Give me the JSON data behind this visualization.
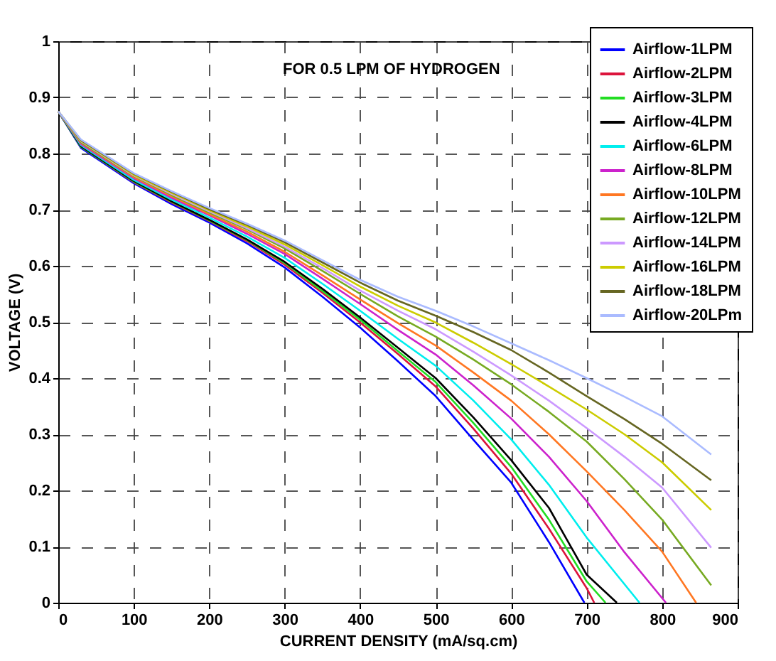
{
  "chart_data": {
    "type": "line",
    "xlabel": "CURRENT DENSITY (mA/sq.cm)",
    "ylabel": "VOLTAGE (V)",
    "annotations": [
      "FOR 0.5 LPM OF HYDROGEN"
    ],
    "xlim": [
      0,
      900
    ],
    "xticks": [
      0,
      100,
      200,
      300,
      400,
      500,
      600,
      700,
      800,
      900
    ],
    "ylim": [
      0,
      1
    ],
    "yticks": [
      0,
      0.1,
      0.2,
      0.3,
      0.4,
      0.5,
      0.6,
      0.7,
      0.8,
      0.9,
      1
    ],
    "grid": true,
    "legend": "top right",
    "marker": "none",
    "line_style": "solid",
    "series": [
      {
        "name": "Airflow-1LPM",
        "color": "#0000ff",
        "x": [
          0,
          30,
          100,
          150,
          200,
          250,
          300,
          350,
          400,
          450,
          500,
          550,
          600,
          650,
          697
        ],
        "values": [
          0.875,
          0.81,
          0.747,
          0.71,
          0.677,
          0.64,
          0.597,
          0.545,
          0.49,
          0.43,
          0.368,
          0.29,
          0.214,
          0.108,
          0
        ]
      },
      {
        "name": "Airflow-2LPM",
        "color": "#dc143c",
        "x": [
          0,
          30,
          100,
          150,
          200,
          250,
          300,
          350,
          400,
          450,
          500,
          550,
          600,
          650,
          700,
          710
        ],
        "values": [
          0.875,
          0.812,
          0.749,
          0.713,
          0.68,
          0.644,
          0.602,
          0.552,
          0.499,
          0.443,
          0.385,
          0.31,
          0.23,
          0.132,
          0.026,
          0
        ]
      },
      {
        "name": "Airflow-3LPM",
        "color": "#22dd22",
        "x": [
          0,
          30,
          100,
          150,
          200,
          250,
          300,
          350,
          400,
          450,
          500,
          550,
          600,
          650,
          700,
          725
        ],
        "values": [
          0.875,
          0.812,
          0.75,
          0.714,
          0.681,
          0.646,
          0.605,
          0.555,
          0.504,
          0.448,
          0.393,
          0.32,
          0.242,
          0.148,
          0.038,
          0
        ]
      },
      {
        "name": "Airflow-4LPM",
        "color": "#000000",
        "x": [
          0,
          30,
          100,
          150,
          200,
          250,
          300,
          350,
          400,
          450,
          500,
          550,
          600,
          650,
          700,
          740
        ],
        "values": [
          0.875,
          0.813,
          0.751,
          0.715,
          0.682,
          0.647,
          0.607,
          0.559,
          0.508,
          0.454,
          0.4,
          0.33,
          0.254,
          0.169,
          0.05,
          0
        ]
      },
      {
        "name": "Airflow-6LPM",
        "color": "#00eeee",
        "x": [
          0,
          30,
          100,
          150,
          200,
          250,
          300,
          350,
          400,
          450,
          500,
          550,
          600,
          650,
          700,
          770
        ],
        "values": [
          0.875,
          0.815,
          0.753,
          0.718,
          0.686,
          0.652,
          0.614,
          0.568,
          0.52,
          0.47,
          0.422,
          0.36,
          0.291,
          0.21,
          0.116,
          0
        ]
      },
      {
        "name": "Airflow-8LPM",
        "color": "#cc22cc",
        "x": [
          0,
          30,
          100,
          150,
          200,
          250,
          300,
          350,
          400,
          450,
          500,
          550,
          600,
          650,
          700,
          750,
          805
        ],
        "values": [
          0.875,
          0.817,
          0.756,
          0.721,
          0.69,
          0.657,
          0.621,
          0.577,
          0.532,
          0.486,
          0.442,
          0.387,
          0.328,
          0.26,
          0.181,
          0.09,
          0
        ]
      },
      {
        "name": "Airflow-10LPM",
        "color": "#ff7722",
        "x": [
          0,
          30,
          100,
          150,
          200,
          250,
          300,
          350,
          400,
          450,
          500,
          550,
          600,
          650,
          700,
          750,
          800,
          845
        ],
        "values": [
          0.875,
          0.819,
          0.758,
          0.724,
          0.692,
          0.661,
          0.625,
          0.583,
          0.54,
          0.498,
          0.458,
          0.41,
          0.36,
          0.3,
          0.234,
          0.165,
          0.091,
          0
        ]
      },
      {
        "name": "Airflow-12LPM",
        "color": "#77aa22",
        "x": [
          0,
          30,
          100,
          150,
          200,
          250,
          300,
          350,
          400,
          450,
          500,
          550,
          600,
          650,
          700,
          750,
          800,
          865
        ],
        "values": [
          0.875,
          0.82,
          0.76,
          0.726,
          0.695,
          0.665,
          0.631,
          0.591,
          0.55,
          0.51,
          0.474,
          0.433,
          0.389,
          0.34,
          0.287,
          0.22,
          0.148,
          0.031
        ]
      },
      {
        "name": "Airflow-14LPM",
        "color": "#cc99ff",
        "x": [
          0,
          30,
          100,
          150,
          200,
          250,
          300,
          350,
          400,
          450,
          500,
          550,
          600,
          650,
          700,
          750,
          800,
          865
        ],
        "values": [
          0.875,
          0.822,
          0.761,
          0.728,
          0.697,
          0.667,
          0.634,
          0.596,
          0.556,
          0.52,
          0.487,
          0.447,
          0.405,
          0.36,
          0.311,
          0.26,
          0.205,
          0.098
        ]
      },
      {
        "name": "Airflow-16LPM",
        "color": "#cccc00",
        "x": [
          0,
          30,
          100,
          150,
          200,
          250,
          300,
          350,
          400,
          450,
          500,
          550,
          600,
          650,
          700,
          750,
          800,
          865
        ],
        "values": [
          0.875,
          0.823,
          0.762,
          0.73,
          0.699,
          0.67,
          0.638,
          0.601,
          0.563,
          0.529,
          0.499,
          0.463,
          0.425,
          0.385,
          0.344,
          0.3,
          0.25,
          0.165
        ]
      },
      {
        "name": "Airflow-18LPM",
        "color": "#666622",
        "x": [
          0,
          30,
          100,
          150,
          200,
          250,
          300,
          350,
          400,
          450,
          500,
          550,
          600,
          650,
          700,
          750,
          800,
          865
        ],
        "values": [
          0.875,
          0.824,
          0.764,
          0.732,
          0.701,
          0.673,
          0.642,
          0.606,
          0.57,
          0.538,
          0.511,
          0.482,
          0.45,
          0.41,
          0.368,
          0.327,
          0.283,
          0.218
        ]
      },
      {
        "name": "Airflow-20LPm",
        "color": "#aabbff",
        "x": [
          0,
          30,
          100,
          150,
          200,
          250,
          300,
          350,
          400,
          450,
          500,
          550,
          600,
          650,
          700,
          750,
          800,
          865
        ],
        "values": [
          0.875,
          0.825,
          0.765,
          0.733,
          0.703,
          0.675,
          0.645,
          0.61,
          0.575,
          0.545,
          0.52,
          0.492,
          0.462,
          0.432,
          0.4,
          0.367,
          0.332,
          0.264
        ]
      }
    ]
  }
}
